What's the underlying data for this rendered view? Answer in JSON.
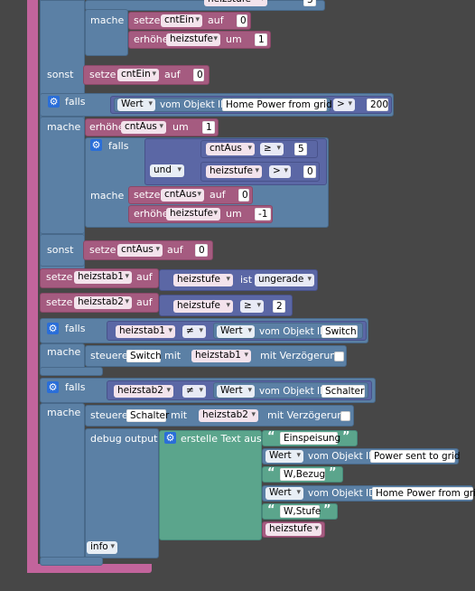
{
  "kw": {
    "mache": "mache",
    "sonst": "sonst",
    "falls": "falls",
    "und": "und",
    "setze": "setze",
    "auf": "auf",
    "erhoehe": "erhöhe",
    "um": "um",
    "vom_objekt_id": "vom Objekt ID",
    "ist": "ist",
    "steuere": "steuere",
    "mit": "mit",
    "mit_verzoegerung": "mit Verzögerung",
    "debug_output": "debug output",
    "erstelle_text_aus": "erstelle Text aus",
    "info": "info",
    "wert": "Wert"
  },
  "top": {
    "var_partial": "heizstufe",
    "num_partial": "3",
    "set_var": "cntEin",
    "set_val": "0",
    "inc_var": "heizstufe",
    "inc_val": "1"
  },
  "sonst1": {
    "var": "cntEin",
    "val": "0"
  },
  "falls_power": {
    "object_id": "Home Power from grid",
    "op": ">",
    "value": "200",
    "inc_var": "cntAus",
    "inc_val": "1",
    "inner": {
      "var1": "cntAus",
      "op1": "≥",
      "val1": "5",
      "conj": "und",
      "var2": "heizstufe",
      "op2": ">",
      "val2": "0",
      "set_var": "cntAus",
      "set_val": "0",
      "inc_var": "heizstufe",
      "inc_val": "-1"
    }
  },
  "sonst2": {
    "var": "cntAus",
    "val": "0"
  },
  "set_heizstab1": {
    "var": "heizstab1",
    "src": "heizstufe",
    "check": "ungerade"
  },
  "set_heizstab2": {
    "var": "heizstab2",
    "src": "heizstufe",
    "op": "≥",
    "val": "2"
  },
  "falls_switch": {
    "var": "heizstab1",
    "op": "≠",
    "object_id": "Switch",
    "steuere_obj": "Switch",
    "steuere_var": "heizstab1"
  },
  "falls_schalter": {
    "var": "heizstab2",
    "op": "≠",
    "object_id": "Schalter",
    "steuere_obj": "Schalter",
    "steuere_var": "heizstab2",
    "texts": [
      "Einspeisung",
      "W,Bezug",
      "W,Stufe"
    ],
    "object_ids": [
      "Power sent to grid",
      "Home Power from grid"
    ],
    "last_var": "heizstufe",
    "level": "info"
  },
  "colors": {
    "background": "#474747",
    "logic": "#5b80a5",
    "variables": "#a55b80",
    "text": "#5ba58c",
    "math": "#5b67a5",
    "event": "#c2649c"
  }
}
